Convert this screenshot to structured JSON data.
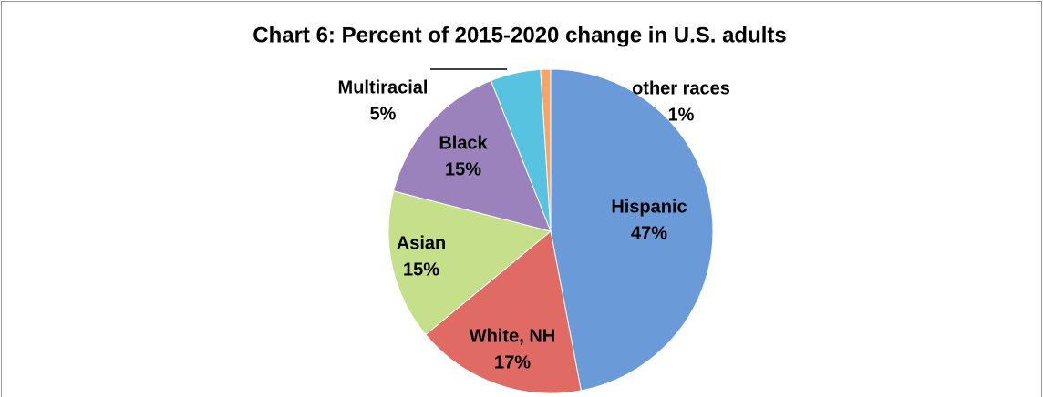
{
  "chart_data": {
    "type": "pie",
    "title": "Chart 6: Percent of 2015-2020 change in U.S. adults",
    "categories": [
      "Hispanic",
      "White, NH",
      "Asian",
      "Black",
      "Multiracial",
      "other races"
    ],
    "values": [
      47,
      17,
      15,
      15,
      5,
      1
    ],
    "value_labels": [
      "47%",
      "17%",
      "15%",
      "15%",
      "5%",
      "1%"
    ],
    "colors": [
      "#6a9bd8",
      "#e06a64",
      "#c5df8a",
      "#9b82bc",
      "#57c3e0",
      "#f4a66a"
    ]
  }
}
